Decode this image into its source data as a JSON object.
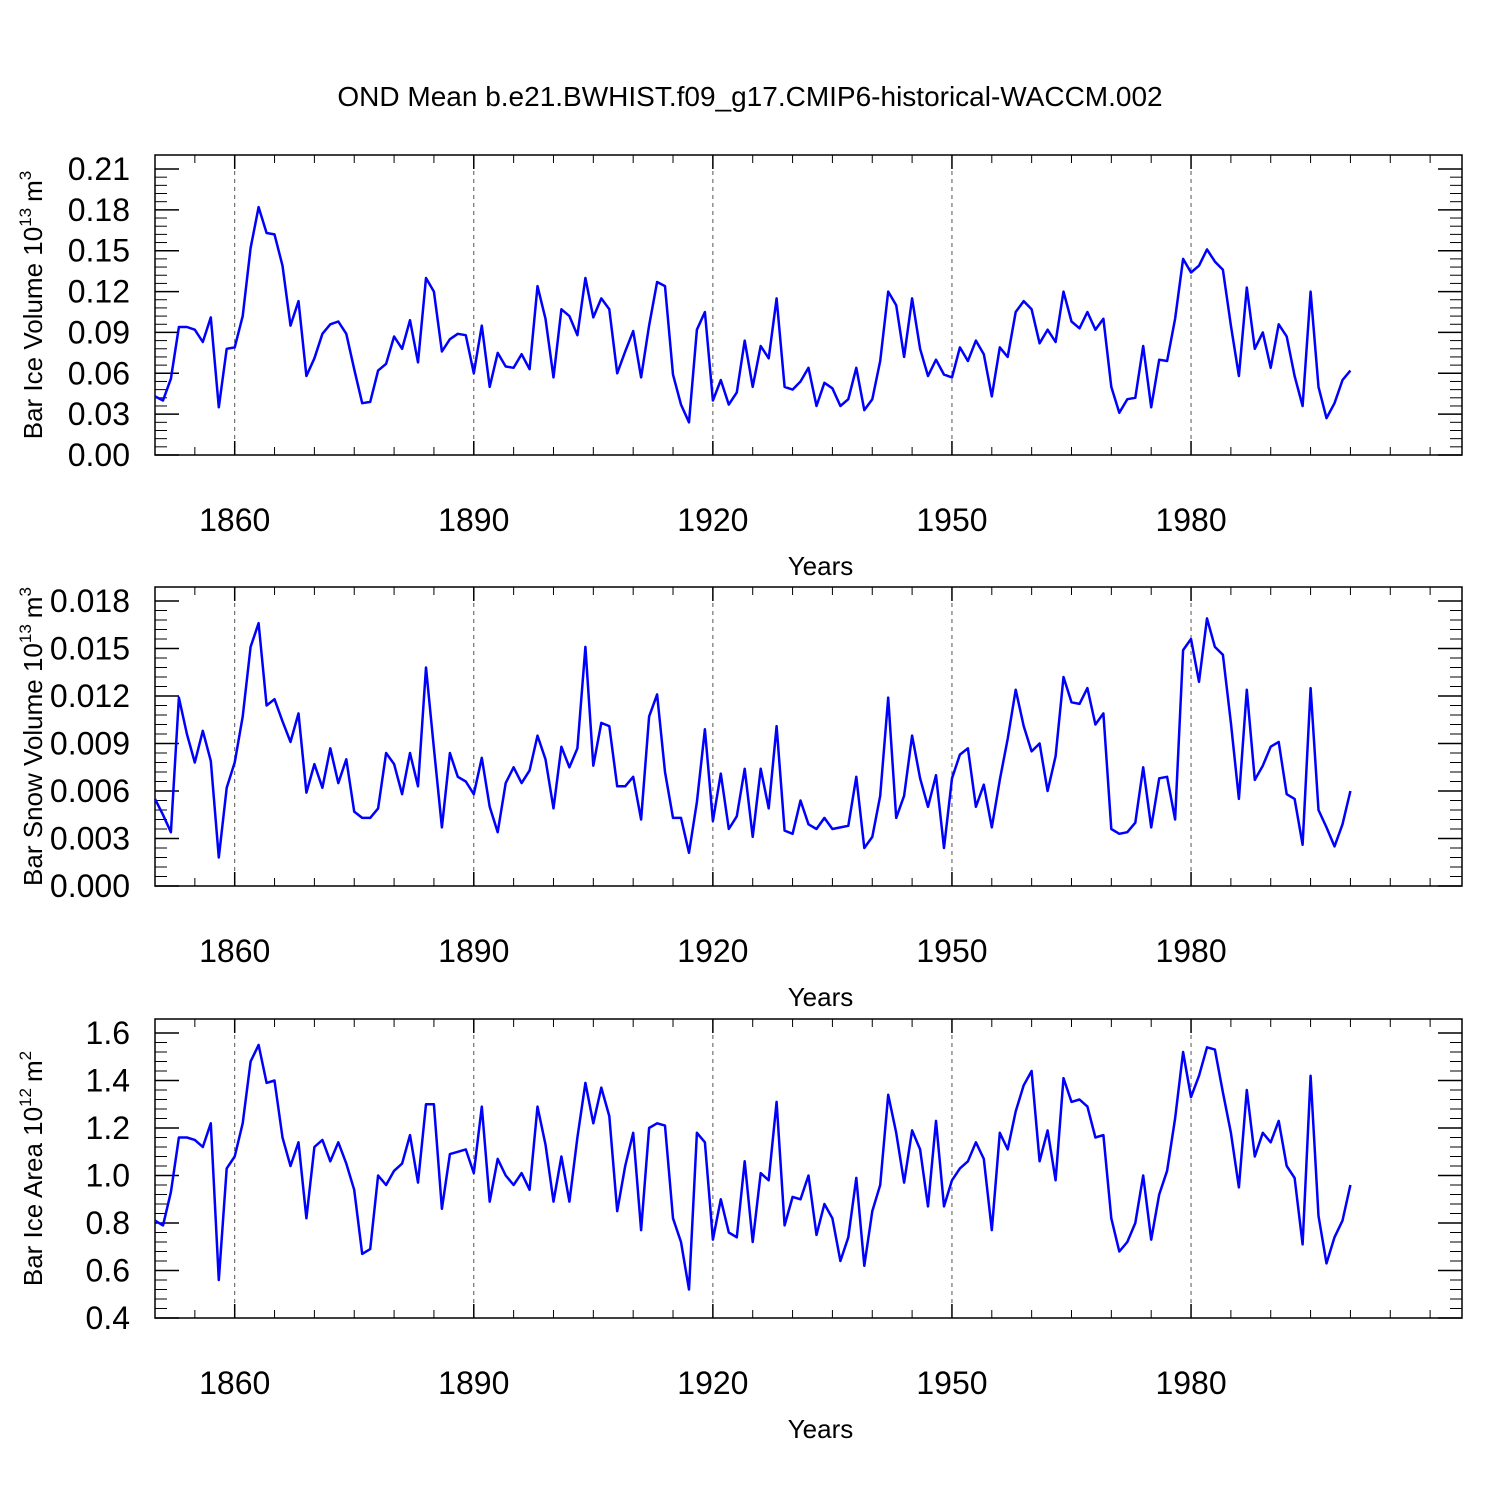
{
  "title": "OND Mean b.e21.BWHIST.f09_g17.CMIP6-historical-WACCM.002",
  "chart_data": [
    {
      "type": "line",
      "title": "",
      "xlabel": "Years",
      "ylabel": "Bar Ice Volume 10",
      "ylabel_sup": "13",
      "ylabel_unit": "m",
      "ylabel_unit_sup": "3",
      "xlim": [
        1850,
        2014
      ],
      "ylim": [
        0,
        0.21
      ],
      "xticks": [
        1860,
        1890,
        1920,
        1950,
        1980
      ],
      "xtick_labels": [
        "1860",
        "1890",
        "1920",
        "1950",
        "1980"
      ],
      "yticks": [
        0,
        0.03,
        0.06,
        0.09,
        0.12,
        0.15,
        0.18,
        0.21
      ],
      "ytick_labels": [
        "0.00",
        "0.03",
        "0.06",
        "0.09",
        "0.12",
        "0.15",
        "0.18",
        "0.21"
      ],
      "grid": "dashed vertical at major x ticks",
      "color": "#0000ff",
      "x_start": 1850,
      "values": [
        0.043,
        0.04,
        0.056,
        0.094,
        0.094,
        0.092,
        0.083,
        0.101,
        0.035,
        0.078,
        0.079,
        0.102,
        0.152,
        0.182,
        0.163,
        0.162,
        0.139,
        0.095,
        0.113,
        0.058,
        0.071,
        0.089,
        0.096,
        0.098,
        0.089,
        0.063,
        0.038,
        0.039,
        0.062,
        0.067,
        0.087,
        0.078,
        0.099,
        0.068,
        0.13,
        0.12,
        0.076,
        0.085,
        0.089,
        0.088,
        0.06,
        0.095,
        0.05,
        0.075,
        0.065,
        0.064,
        0.074,
        0.063,
        0.124,
        0.1,
        0.057,
        0.107,
        0.102,
        0.088,
        0.13,
        0.101,
        0.115,
        0.107,
        0.06,
        0.076,
        0.091,
        0.057,
        0.095,
        0.127,
        0.124,
        0.059,
        0.037,
        0.024,
        0.092,
        0.105,
        0.04,
        0.055,
        0.037,
        0.046,
        0.084,
        0.05,
        0.08,
        0.071,
        0.115,
        0.05,
        0.048,
        0.054,
        0.064,
        0.036,
        0.053,
        0.049,
        0.036,
        0.041,
        0.064,
        0.033,
        0.041,
        0.069,
        0.12,
        0.11,
        0.072,
        0.115,
        0.078,
        0.058,
        0.07,
        0.059,
        0.057,
        0.079,
        0.069,
        0.084,
        0.074,
        0.043,
        0.079,
        0.072,
        0.105,
        0.113,
        0.107,
        0.082,
        0.092,
        0.083,
        0.12,
        0.098,
        0.093,
        0.105,
        0.092,
        0.1,
        0.05,
        0.031,
        0.041,
        0.042,
        0.08,
        0.035,
        0.07,
        0.069,
        0.1,
        0.144,
        0.134,
        0.139,
        0.151,
        0.142,
        0.136,
        0.095,
        0.058,
        0.123,
        0.078,
        0.09,
        0.064,
        0.096,
        0.087,
        0.058,
        0.036,
        0.12,
        0.05,
        0.027,
        0.038,
        0.055,
        0.062
      ]
    },
    {
      "type": "line",
      "title": "",
      "xlabel": "Years",
      "ylabel": "Bar Snow Volume 10",
      "ylabel_sup": "13",
      "ylabel_unit": "m",
      "ylabel_unit_sup": "3",
      "xlim": [
        1850,
        2014
      ],
      "ylim": [
        0,
        0.018
      ],
      "xticks": [
        1860,
        1890,
        1920,
        1950,
        1980
      ],
      "xtick_labels": [
        "1860",
        "1890",
        "1920",
        "1950",
        "1980"
      ],
      "yticks": [
        0,
        0.003,
        0.006,
        0.009,
        0.012,
        0.015,
        0.018
      ],
      "ytick_labels": [
        "0.000",
        "0.003",
        "0.006",
        "0.009",
        "0.012",
        "0.015",
        "0.018"
      ],
      "grid": "dashed vertical at major x ticks",
      "color": "#0000ff",
      "x_start": 1850,
      "values": [
        0.0055,
        0.0045,
        0.0034,
        0.0119,
        0.0096,
        0.0078,
        0.0098,
        0.0079,
        0.0018,
        0.0062,
        0.0078,
        0.0107,
        0.0151,
        0.0166,
        0.0114,
        0.0118,
        0.0104,
        0.0091,
        0.0109,
        0.0059,
        0.0077,
        0.0062,
        0.0087,
        0.0065,
        0.008,
        0.0047,
        0.0043,
        0.0043,
        0.0049,
        0.0084,
        0.0077,
        0.0058,
        0.0084,
        0.0063,
        0.0138,
        0.0087,
        0.0037,
        0.0084,
        0.0069,
        0.0066,
        0.0058,
        0.0081,
        0.005,
        0.0034,
        0.0065,
        0.0075,
        0.0065,
        0.0073,
        0.0095,
        0.008,
        0.0049,
        0.0088,
        0.0075,
        0.0087,
        0.0151,
        0.0076,
        0.0103,
        0.0101,
        0.0063,
        0.0063,
        0.0069,
        0.0042,
        0.0107,
        0.0121,
        0.0072,
        0.0043,
        0.0043,
        0.0021,
        0.0053,
        0.0099,
        0.0041,
        0.0071,
        0.0036,
        0.0044,
        0.0074,
        0.0031,
        0.0074,
        0.0049,
        0.0101,
        0.0035,
        0.0033,
        0.0054,
        0.0039,
        0.0036,
        0.0043,
        0.0036,
        0.0037,
        0.0038,
        0.0069,
        0.0024,
        0.0031,
        0.0057,
        0.0119,
        0.0043,
        0.0057,
        0.0095,
        0.0068,
        0.005,
        0.007,
        0.0024,
        0.0068,
        0.0083,
        0.0087,
        0.005,
        0.0064,
        0.0037,
        0.0067,
        0.0093,
        0.0124,
        0.0101,
        0.0085,
        0.009,
        0.006,
        0.0082,
        0.0132,
        0.0116,
        0.0115,
        0.0125,
        0.0102,
        0.0109,
        0.0036,
        0.0033,
        0.0034,
        0.004,
        0.0075,
        0.0037,
        0.0068,
        0.0069,
        0.0042,
        0.0149,
        0.0156,
        0.0129,
        0.0169,
        0.0151,
        0.0146,
        0.0103,
        0.0055,
        0.0124,
        0.0067,
        0.0076,
        0.0088,
        0.0091,
        0.0058,
        0.0055,
        0.0026,
        0.0125,
        0.0048,
        0.0037,
        0.0025,
        0.0039,
        0.006
      ]
    },
    {
      "type": "line",
      "title": "",
      "xlabel": "Years",
      "ylabel": "Bar Ice Area 10",
      "ylabel_sup": "12",
      "ylabel_unit": "m",
      "ylabel_unit_sup": "2",
      "xlim": [
        1850,
        2014
      ],
      "ylim": [
        0.4,
        1.6
      ],
      "xticks": [
        1860,
        1890,
        1920,
        1950,
        1980
      ],
      "xtick_labels": [
        "1860",
        "1890",
        "1920",
        "1950",
        "1980"
      ],
      "yticks": [
        0.4,
        0.6,
        0.8,
        1.0,
        1.2,
        1.4,
        1.6
      ],
      "ytick_labels": [
        "0.4",
        "0.6",
        "0.8",
        "1.0",
        "1.2",
        "1.4",
        "1.6"
      ],
      "grid": "dashed vertical at major x ticks",
      "color": "#0000ff",
      "x_start": 1850,
      "values": [
        0.81,
        0.79,
        0.93,
        1.16,
        1.16,
        1.15,
        1.12,
        1.22,
        0.56,
        1.03,
        1.08,
        1.22,
        1.48,
        1.55,
        1.39,
        1.4,
        1.16,
        1.04,
        1.14,
        0.82,
        1.12,
        1.15,
        1.06,
        1.14,
        1.05,
        0.94,
        0.67,
        0.69,
        1.0,
        0.96,
        1.02,
        1.05,
        1.17,
        0.97,
        1.3,
        1.3,
        0.86,
        1.09,
        1.1,
        1.11,
        1.01,
        1.29,
        0.89,
        1.07,
        1.0,
        0.96,
        1.01,
        0.94,
        1.29,
        1.13,
        0.89,
        1.08,
        0.89,
        1.16,
        1.39,
        1.22,
        1.37,
        1.25,
        0.85,
        1.04,
        1.18,
        0.77,
        1.2,
        1.22,
        1.21,
        0.82,
        0.72,
        0.52,
        1.18,
        1.14,
        0.73,
        0.9,
        0.76,
        0.74,
        1.06,
        0.72,
        1.01,
        0.98,
        1.31,
        0.79,
        0.91,
        0.9,
        1.0,
        0.75,
        0.88,
        0.82,
        0.64,
        0.74,
        0.99,
        0.62,
        0.85,
        0.96,
        1.34,
        1.18,
        0.97,
        1.19,
        1.11,
        0.87,
        1.23,
        0.87,
        0.98,
        1.03,
        1.06,
        1.14,
        1.07,
        0.77,
        1.18,
        1.11,
        1.27,
        1.38,
        1.44,
        1.06,
        1.19,
        0.98,
        1.41,
        1.31,
        1.32,
        1.29,
        1.16,
        1.17,
        0.82,
        0.68,
        0.72,
        0.8,
        1.0,
        0.73,
        0.92,
        1.02,
        1.24,
        1.52,
        1.33,
        1.42,
        1.54,
        1.53,
        1.35,
        1.18,
        0.95,
        1.36,
        1.08,
        1.18,
        1.14,
        1.23,
        1.04,
        0.99,
        0.71,
        1.42,
        0.83,
        0.63,
        0.74,
        0.81,
        0.96
      ]
    }
  ]
}
